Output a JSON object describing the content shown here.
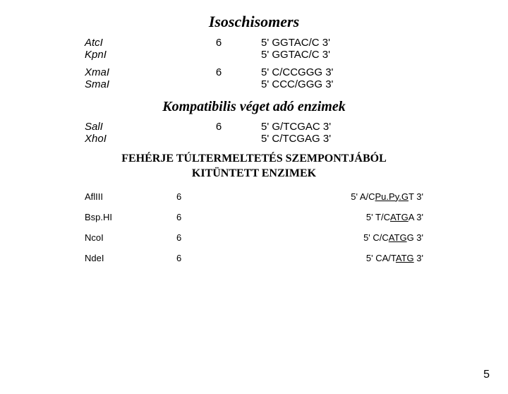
{
  "titles": {
    "t1": "Isoschisomers",
    "t2": "Kompatibilis véget adó enzimek",
    "t3a": "FEHÉRJE TÚLTERMELTETÉS SZEMPONTJÁBÓL",
    "t3b": "KITÜNTETT ENZIMEK"
  },
  "sec1": {
    "g1": {
      "e1": "AtcI",
      "e2": "KpnI",
      "len": "6",
      "s1": "5' GGTAC/C 3'",
      "s2": "5' GGTAC/C 3'"
    },
    "g2": {
      "e1": "XmaI",
      "e2": "SmaI",
      "len": "6",
      "s1": "5' C/CCGGG 3'",
      "s2": "5' CCC/GGG 3'"
    }
  },
  "sec2": {
    "g1": {
      "e1": "SalI",
      "e2": "XhoI",
      "len": "6",
      "s1": "5' G/TCGAC 3'",
      "s2": "5' C/TCGAG 3'"
    }
  },
  "sec3": {
    "r1": {
      "e": "AflIII",
      "len": "6",
      "pre": "5' A/C",
      "u": "Pu.Py.G",
      "post": "T 3'"
    },
    "r2": {
      "e": "Bsp.HI",
      "len": "6",
      "pre": "5' T/C",
      "u": "ATG",
      "post": "A 3'"
    },
    "r3": {
      "e": "NcoI",
      "len": "6",
      "pre": "5' C/C",
      "u": "ATG",
      "post": "G 3'"
    },
    "r4": {
      "e": "NdeI",
      "len": "6",
      "pre": "5' CA/T",
      "u": "ATG",
      "post": " 3'"
    }
  },
  "page": "5",
  "colors": {
    "text": "#000000",
    "bg": "#ffffff"
  },
  "fonts": {
    "title": "Comic Sans MS",
    "body": "Arial",
    "titleSize": 22,
    "subtitleSize": 20,
    "headerSize": 16,
    "rowSize": 15,
    "row2Size": 13
  }
}
